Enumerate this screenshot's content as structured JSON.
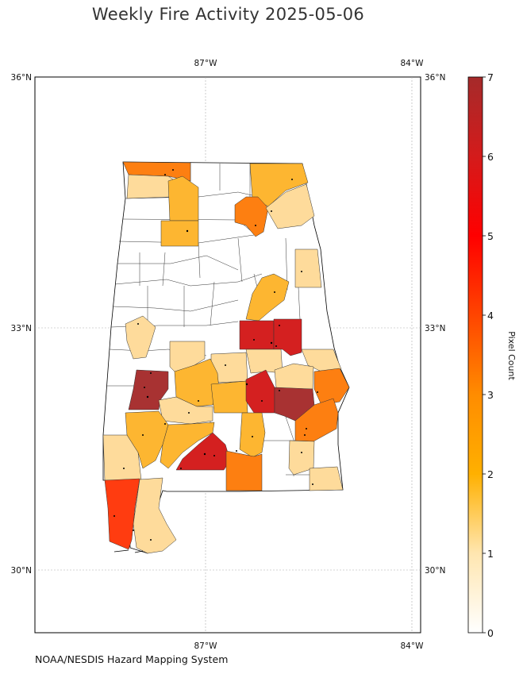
{
  "title": "Weekly Fire Activity 2025-05-06",
  "credit": "NOAA/NESDIS Hazard Mapping System",
  "map": {
    "lat_labels": [
      "36°N",
      "33°N",
      "30°N"
    ],
    "lon_labels": [
      "87°W",
      "84°W"
    ],
    "gridlines": true
  },
  "colorbar": {
    "label": "Pixel Count",
    "min": 0,
    "max": 7,
    "ticks": [
      "0",
      "1",
      "2",
      "3",
      "4",
      "5",
      "6",
      "7"
    ],
    "colors": [
      "#ffffff",
      "#ffe6b0",
      "#ffb000",
      "#ff8c00",
      "#ff4500",
      "#ff0000",
      "#d41b1b",
      "#a52a2a"
    ]
  },
  "legend_colors": {
    "level1": "#fedb9b",
    "level2": "#fdb631",
    "level3": "#fd7f11",
    "level4": "#ff3c10",
    "level6": "#d42020",
    "level7": "#a83232"
  }
}
